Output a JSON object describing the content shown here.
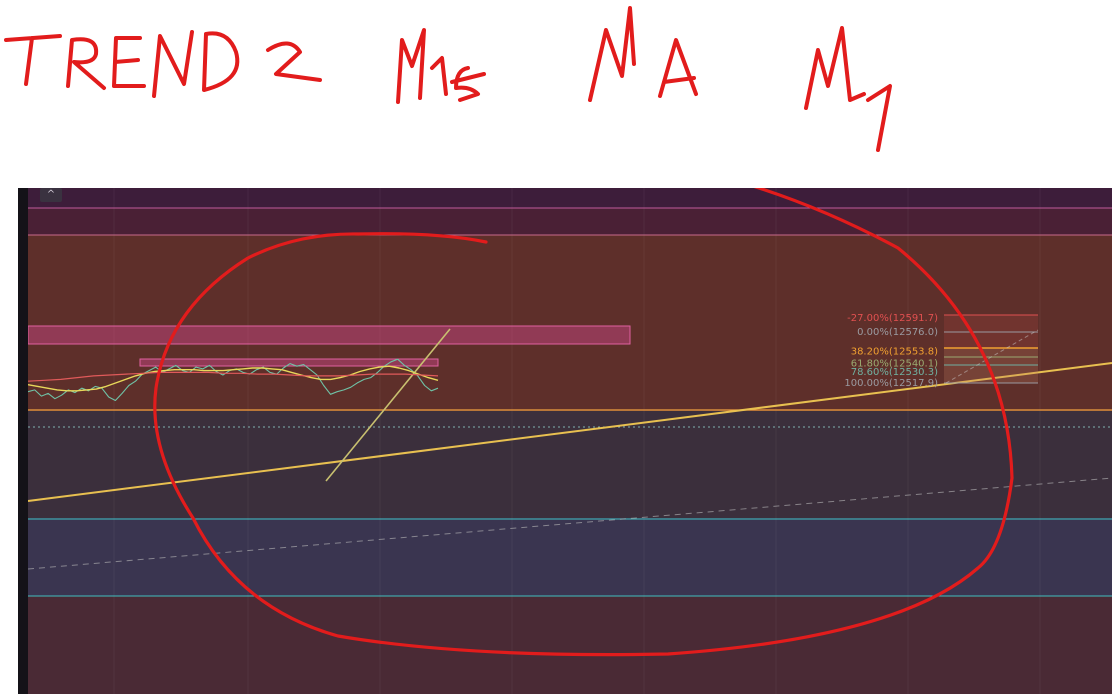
{
  "handwriting": {
    "words": [
      "TREND",
      "2",
      "M15",
      "MA",
      "M1"
    ]
  },
  "chart": {
    "collapse_button": "^"
  },
  "chart_data": {
    "type": "line",
    "title": "",
    "series": [
      {
        "values": [
          12508,
          12510,
          12503,
          12506,
          12500,
          12504,
          12510,
          12507,
          12512,
          12509,
          12514,
          12512,
          12502,
          12498,
          12506,
          12515,
          12520,
          12528,
          12532,
          12536,
          12530,
          12534,
          12538,
          12532,
          12530,
          12536,
          12534,
          12538,
          12531,
          12527,
          12532,
          12534,
          12530,
          12528,
          12533,
          12536,
          12530,
          12528,
          12535,
          12540,
          12537,
          12539,
          12533,
          12527,
          12515,
          12505,
          12508,
          12510,
          12513,
          12518,
          12522,
          12524,
          12530,
          12537,
          12542,
          12545,
          12538,
          12533,
          12526,
          12515,
          12509,
          12512
        ]
      },
      {
        "values": [
          12516,
          12514,
          12512,
          12510,
          12509,
          12509,
          12510,
          12511,
          12514,
          12518,
          12522,
          12526,
          12529,
          12531,
          12532,
          12533,
          12533,
          12533,
          12532,
          12532,
          12532,
          12533,
          12534,
          12535,
          12535,
          12534,
          12533,
          12530,
          12527,
          12524,
          12522,
          12522,
          12524,
          12527,
          12531,
          12534,
          12536,
          12537,
          12535,
          12532,
          12528,
          12524,
          12521
        ]
      },
      {
        "values": [
          12520,
          12521,
          12522,
          12524,
          12526,
          12527,
          12528,
          12529,
          12530,
          12530,
          12530,
          12530,
          12529,
          12529,
          12528,
          12528,
          12527,
          12526,
          12526,
          12526,
          12527,
          12528,
          12528,
          12528,
          12527,
          12526
        ]
      }
    ],
    "fibonacci_levels": [
      {
        "label": "-27.00%(12591.7)",
        "color": "#e05050",
        "price": 12591.7
      },
      {
        "label": "0.00%(12576.0)",
        "color": "#9a9aa0",
        "price": 12576.0
      },
      {
        "label": "38.20%(12553.8)",
        "color": "#f0a030",
        "price": 12553.8
      },
      {
        "label": "61.80%(12540.1)",
        "color": "#9aaa70",
        "price": 12540.1
      },
      {
        "label": "78.60%(12530.3)",
        "color": "#70b0a0",
        "price": 12530.3
      },
      {
        "label": "100.00%(12517.9)",
        "color": "#9a9aa0",
        "price": 12517.9
      }
    ],
    "legend": "none",
    "grid": true
  }
}
